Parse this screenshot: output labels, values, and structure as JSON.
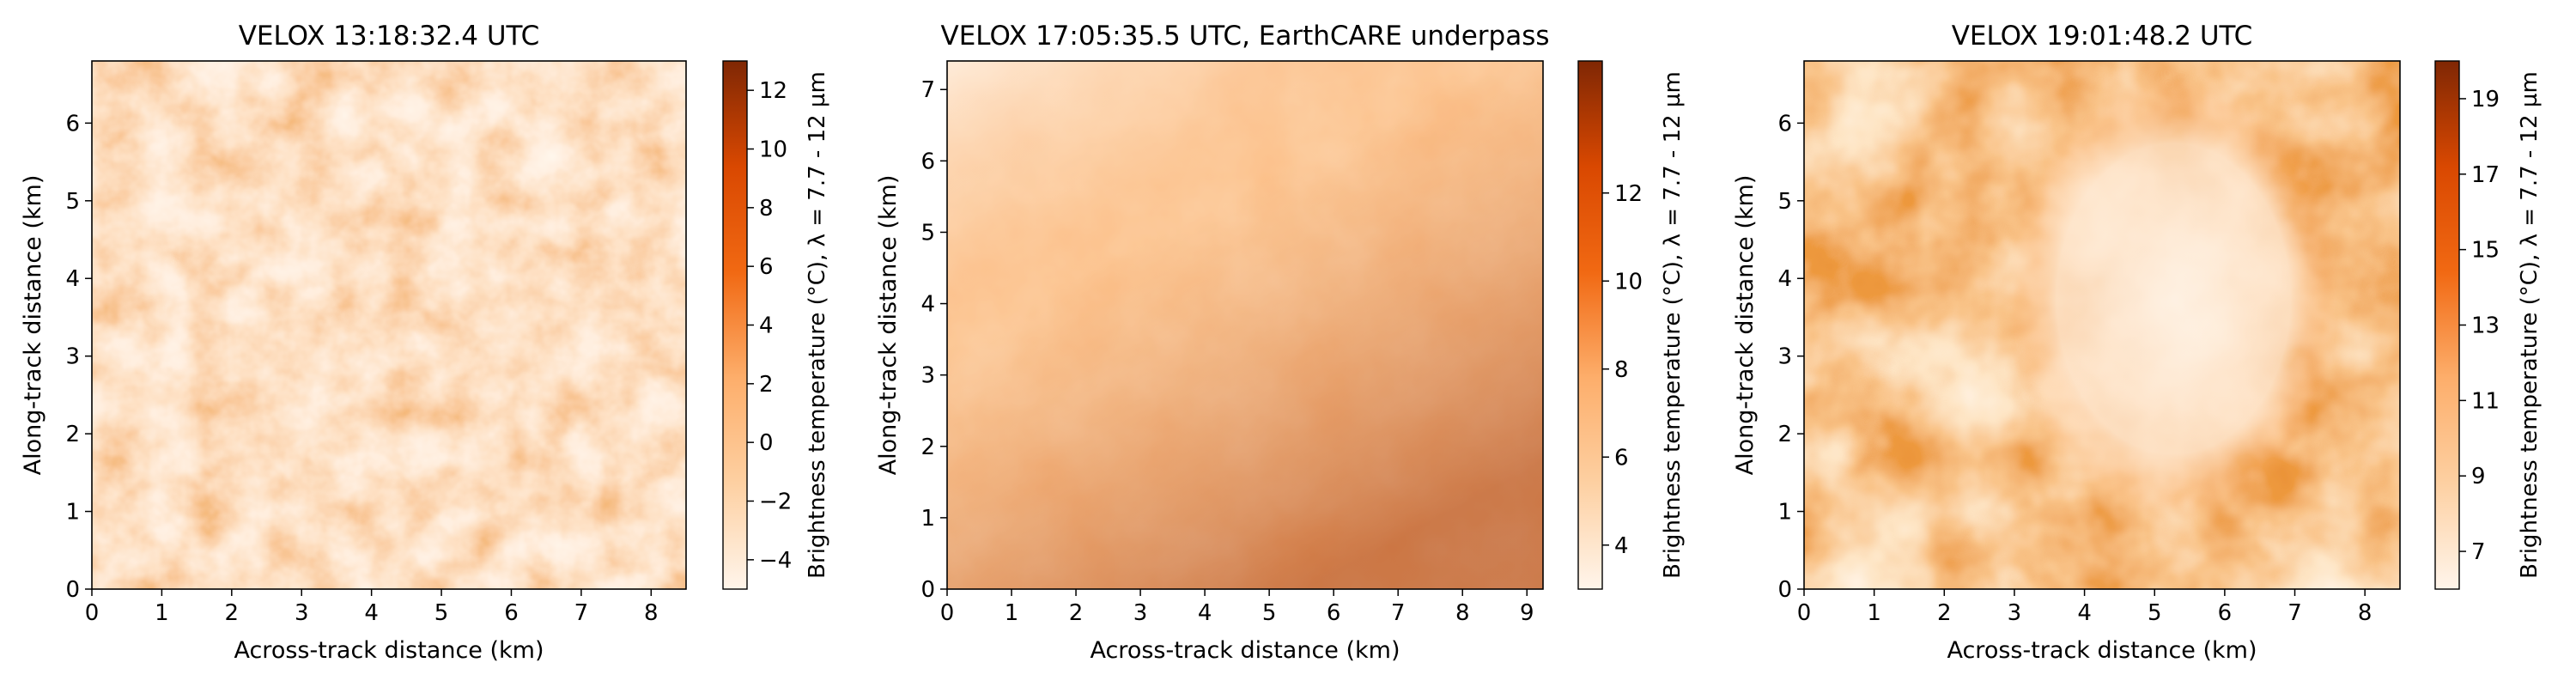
{
  "chart_data": [
    {
      "type": "heatmap",
      "title": "VELOX 13:18:32.4 UTC",
      "xlabel": "Across-track distance (km)",
      "ylabel": "Along-track distance (km)",
      "xlim": [
        0,
        8.5
      ],
      "ylim": [
        0,
        6.8
      ],
      "xticks": [
        "0",
        "1",
        "2",
        "3",
        "4",
        "5",
        "6",
        "7",
        "8"
      ],
      "yticks": [
        "0",
        "1",
        "2",
        "3",
        "4",
        "5",
        "6"
      ],
      "colorbar": {
        "label": "Brightness temperature (°C), λ = 7.7 - 12 µm",
        "range": [
          -5,
          13
        ],
        "ticks": [
          "−4",
          "−2",
          "0",
          "2",
          "4",
          "6",
          "8",
          "10",
          "12"
        ],
        "colormap": [
          "#fff5eb",
          "#fdd0a2",
          "#fdae6b",
          "#f16913",
          "#d94801",
          "#7f2704"
        ]
      },
      "field": "broken cellular cloud field, mostly cool (light) with warm clear-sky gaps along cell edges"
    },
    {
      "type": "heatmap",
      "title": "VELOX 17:05:35.5 UTC, EarthCARE underpass",
      "xlabel": "Across-track distance (km)",
      "ylabel": "Along-track distance (km)",
      "xlim": [
        0,
        9.25
      ],
      "ylim": [
        0,
        7.4
      ],
      "xticks": [
        "0",
        "1",
        "2",
        "3",
        "4",
        "5",
        "6",
        "7",
        "8",
        "9"
      ],
      "yticks": [
        "0",
        "1",
        "2",
        "3",
        "4",
        "5",
        "6",
        "7"
      ],
      "colorbar": {
        "label": "Brightness temperature (°C), λ = 7.7 - 12 µm",
        "range": [
          3,
          15
        ],
        "ticks": [
          "4",
          "6",
          "8",
          "10",
          "12"
        ],
        "colormap": [
          "#fff5eb",
          "#fdd0a2",
          "#fdae6b",
          "#f16913",
          "#d94801",
          "#7f2704"
        ]
      },
      "field": "cold cloud sheet at the top grading to warmer values toward the bottom-right"
    },
    {
      "type": "heatmap",
      "title": "VELOX 19:01:48.2 UTC",
      "xlabel": "Across-track distance (km)",
      "ylabel": "Along-track distance (km)",
      "xlim": [
        0,
        8.5
      ],
      "ylim": [
        0,
        6.8
      ],
      "xticks": [
        "0",
        "1",
        "2",
        "3",
        "4",
        "5",
        "6",
        "7",
        "8"
      ],
      "yticks": [
        "0",
        "1",
        "2",
        "3",
        "4",
        "5",
        "6"
      ],
      "colorbar": {
        "label": "Brightness temperature (°C), λ = 7.7 - 12 µm",
        "range": [
          6,
          20
        ],
        "ticks": [
          "7",
          "9",
          "11",
          "13",
          "15",
          "17",
          "19"
        ],
        "colormap": [
          "#fff5eb",
          "#fdd0a2",
          "#fdae6b",
          "#f16913",
          "#d94801",
          "#7f2704"
        ]
      },
      "field": "large cold cloud in the right half over warm (dark) clear-sky background"
    }
  ]
}
